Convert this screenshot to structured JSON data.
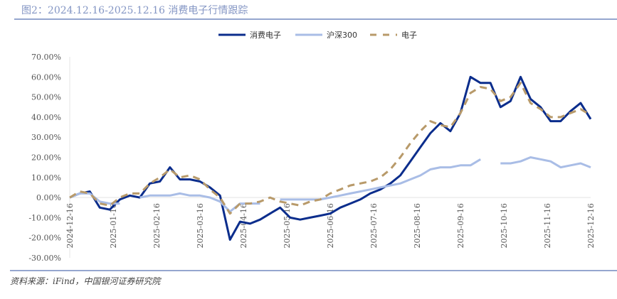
{
  "title": "图2：2024.12.16-2025.12.16 消费电子行情跟踪",
  "source": "资料来源：iFind，中国银河证券研究院",
  "chart_data": {
    "type": "line",
    "title": "",
    "xlabel": "",
    "ylabel": "",
    "ylim": [
      -30,
      70
    ],
    "yticks": [
      "70.00%",
      "60.00%",
      "50.00%",
      "40.00%",
      "30.00%",
      "20.00%",
      "10.00%",
      "0.00%",
      "-10.00%",
      "-20.00%",
      "-30.00%"
    ],
    "xticks": [
      "2024-12-16",
      "2025-01-16",
      "2025-02-16",
      "2025-03-16",
      "2025-04-16",
      "2025-05-16",
      "2025-06-16",
      "2025-07-16",
      "2025-08-16",
      "2025-09-16",
      "2025-10-16",
      "2025-11-16",
      "2025-12-16"
    ],
    "x_range": [
      "2024-12-16",
      "2025-12-16"
    ],
    "x_step": "weekly",
    "grid": "zero line only",
    "legend_position": "top-right",
    "series": [
      {
        "name": "消费电子",
        "color": "#0b2d8c",
        "style": "solid",
        "values": [
          0,
          2,
          3,
          -5,
          -6,
          -1,
          1,
          0,
          7,
          8,
          15,
          9,
          9,
          8,
          5,
          1,
          -21,
          -12,
          -13,
          -11,
          -8,
          -5,
          -10,
          -11,
          -10,
          -9,
          -8,
          -5,
          -3,
          -1,
          2,
          4,
          7,
          11,
          18,
          25,
          32,
          37,
          33,
          42,
          60,
          57,
          57,
          45,
          48,
          60,
          49,
          45,
          38,
          38,
          43,
          47,
          39
        ]
      },
      {
        "name": "沪深300",
        "color": "#a9bde6",
        "style": "solid",
        "values": [
          0,
          2,
          2,
          -2,
          -3,
          -3,
          null,
          0,
          1,
          1,
          1,
          2,
          1,
          1,
          0,
          -2,
          -7,
          -3,
          -3,
          -3,
          null,
          -1,
          -1,
          -1,
          -1,
          -1,
          0,
          1,
          2,
          3,
          4,
          5,
          6,
          7,
          9,
          11,
          14,
          15,
          15,
          16,
          16,
          19,
          null,
          17,
          17,
          18,
          20,
          19,
          18,
          15,
          16,
          17,
          15
        ]
      },
      {
        "name": "电子",
        "color": "#b89a6a",
        "style": "dashed",
        "values": [
          0,
          3,
          2,
          -3,
          -4,
          0,
          2,
          2,
          7,
          10,
          14,
          10,
          11,
          9,
          4,
          0,
          -8,
          -3,
          -3,
          -2,
          0,
          -2,
          -3,
          -4,
          -2,
          -1,
          2,
          4,
          6,
          7,
          8,
          10,
          14,
          20,
          27,
          33,
          38,
          36,
          35,
          42,
          52,
          55,
          54,
          48,
          50,
          57,
          47,
          44,
          40,
          40,
          42,
          44,
          41
        ]
      }
    ]
  }
}
